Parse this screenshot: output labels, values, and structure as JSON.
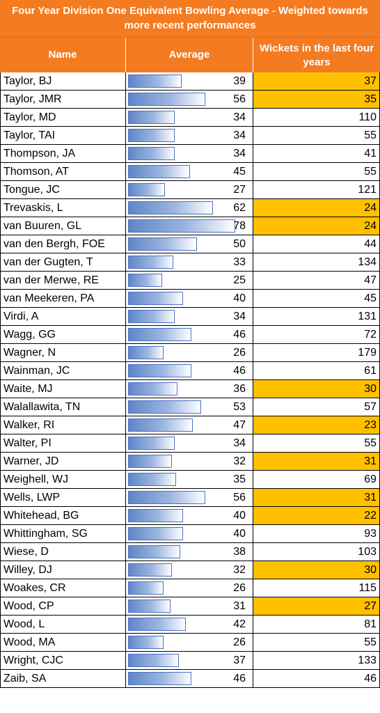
{
  "chart_data": {
    "type": "table",
    "title": "Four Year Division One Equivalent Bowling Average - Weighted towards more recent performances",
    "columns": [
      "Name",
      "Average",
      "Wickets in the last four years"
    ],
    "highlight_color": "#ffc000",
    "header_color": "#f47b20",
    "bar_color": "#5f86c8",
    "bar_scale_max": 80,
    "rows": [
      {
        "name": "Taylor, BJ",
        "average": 39,
        "wickets": 37,
        "highlight": true
      },
      {
        "name": "Taylor, JMR",
        "average": 56,
        "wickets": 35,
        "highlight": true
      },
      {
        "name": "Taylor, MD",
        "average": 34,
        "wickets": 110,
        "highlight": false
      },
      {
        "name": "Taylor, TAI",
        "average": 34,
        "wickets": 55,
        "highlight": false
      },
      {
        "name": "Thompson, JA",
        "average": 34,
        "wickets": 41,
        "highlight": false
      },
      {
        "name": "Thomson, AT",
        "average": 45,
        "wickets": 55,
        "highlight": false
      },
      {
        "name": "Tongue, JC",
        "average": 27,
        "wickets": 121,
        "highlight": false
      },
      {
        "name": "Trevaskis, L",
        "average": 62,
        "wickets": 24,
        "highlight": true
      },
      {
        "name": "van Buuren, GL",
        "average": 78,
        "wickets": 24,
        "highlight": true
      },
      {
        "name": "van den Bergh, FOE",
        "average": 50,
        "wickets": 44,
        "highlight": false
      },
      {
        "name": "van der Gugten, T",
        "average": 33,
        "wickets": 134,
        "highlight": false
      },
      {
        "name": "van der Merwe, RE",
        "average": 25,
        "wickets": 47,
        "highlight": false
      },
      {
        "name": "van Meekeren, PA",
        "average": 40,
        "wickets": 45,
        "highlight": false
      },
      {
        "name": "Virdi, A",
        "average": 34,
        "wickets": 131,
        "highlight": false
      },
      {
        "name": "Wagg, GG",
        "average": 46,
        "wickets": 72,
        "highlight": false
      },
      {
        "name": "Wagner, N",
        "average": 26,
        "wickets": 179,
        "highlight": false
      },
      {
        "name": "Wainman, JC",
        "average": 46,
        "wickets": 61,
        "highlight": false
      },
      {
        "name": "Waite, MJ",
        "average": 36,
        "wickets": 30,
        "highlight": true
      },
      {
        "name": "Walallawita, TN",
        "average": 53,
        "wickets": 57,
        "highlight": false
      },
      {
        "name": "Walker, RI",
        "average": 47,
        "wickets": 23,
        "highlight": true
      },
      {
        "name": "Walter, PI",
        "average": 34,
        "wickets": 55,
        "highlight": false
      },
      {
        "name": "Warner, JD",
        "average": 32,
        "wickets": 31,
        "highlight": true
      },
      {
        "name": "Weighell, WJ",
        "average": 35,
        "wickets": 69,
        "highlight": false
      },
      {
        "name": "Wells, LWP",
        "average": 56,
        "wickets": 31,
        "highlight": true
      },
      {
        "name": "Whitehead, BG",
        "average": 40,
        "wickets": 22,
        "highlight": true
      },
      {
        "name": "Whittingham, SG",
        "average": 40,
        "wickets": 93,
        "highlight": false
      },
      {
        "name": "Wiese, D",
        "average": 38,
        "wickets": 103,
        "highlight": false
      },
      {
        "name": "Willey, DJ",
        "average": 32,
        "wickets": 30,
        "highlight": true
      },
      {
        "name": "Woakes, CR",
        "average": 26,
        "wickets": 115,
        "highlight": false
      },
      {
        "name": "Wood, CP",
        "average": 31,
        "wickets": 27,
        "highlight": true
      },
      {
        "name": "Wood, L",
        "average": 42,
        "wickets": 81,
        "highlight": false
      },
      {
        "name": "Wood, MA",
        "average": 26,
        "wickets": 55,
        "highlight": false
      },
      {
        "name": "Wright, CJC",
        "average": 37,
        "wickets": 133,
        "highlight": false
      },
      {
        "name": "Zaib, SA",
        "average": 46,
        "wickets": 46,
        "highlight": false
      }
    ]
  }
}
